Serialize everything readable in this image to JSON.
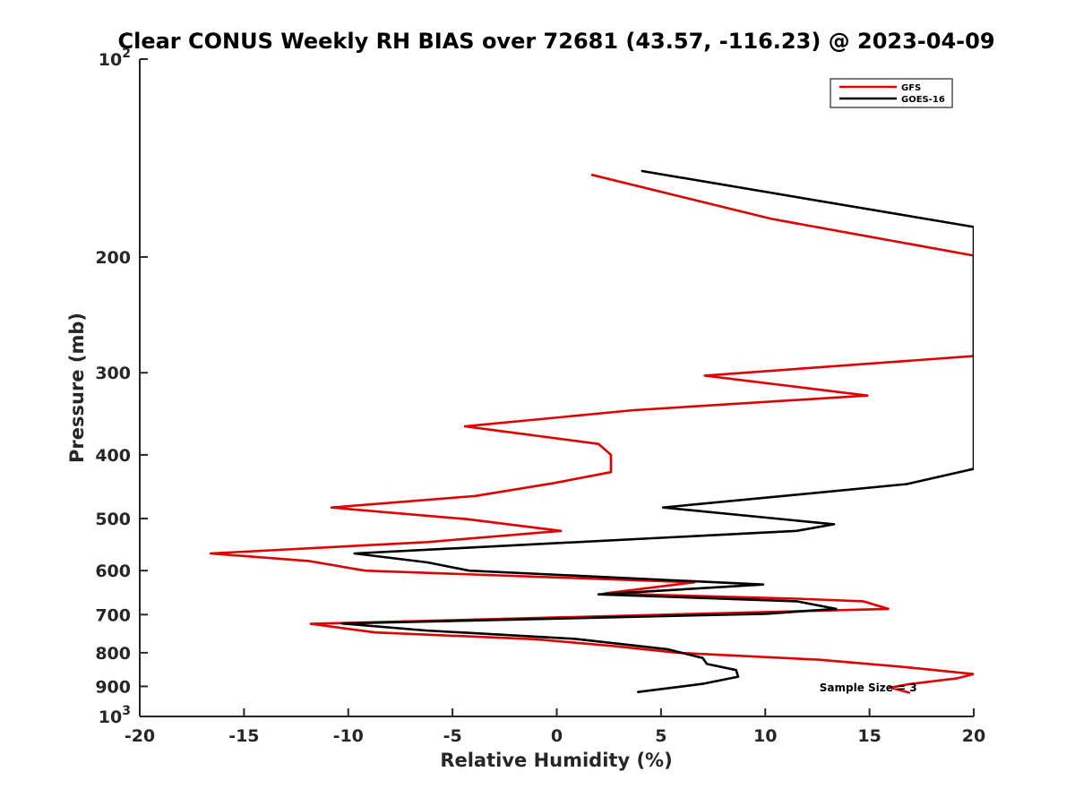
{
  "chart_data": {
    "type": "line",
    "title": "Clear CONUS Weekly RH BIAS over 72681 (43.57, -116.23) @ 2023-04-09",
    "xlabel": "Relative Humidity (%)",
    "ylabel": "Pressure (mb)",
    "xlim": [
      -20,
      20
    ],
    "ylim": [
      100,
      1000
    ],
    "y_scale": "log",
    "y_reversed": true,
    "grid": false,
    "legend_position": "top-right",
    "x_ticks": [
      "-20",
      "-15",
      "-10",
      "-5",
      "0",
      "5",
      "10",
      "15",
      "20"
    ],
    "y_ticks": [
      {
        "value": 100,
        "base": "10",
        "exp": "2"
      },
      {
        "value": 200,
        "label": "200"
      },
      {
        "value": 300,
        "label": "300"
      },
      {
        "value": 400,
        "label": "400"
      },
      {
        "value": 500,
        "label": "500"
      },
      {
        "value": 600,
        "label": "600"
      },
      {
        "value": 700,
        "label": "700"
      },
      {
        "value": 800,
        "label": "800"
      },
      {
        "value": 900,
        "label": "900"
      },
      {
        "value": 1000,
        "base": "10",
        "exp": "3"
      }
    ],
    "series": [
      {
        "name": "GFS",
        "color": "#e00000",
        "points": [
          [
            1.7,
            150
          ],
          [
            10.3,
            175
          ],
          [
            20.0,
            199
          ],
          [
            20.0,
            283
          ],
          [
            7.1,
            303
          ],
          [
            14.9,
            325
          ],
          [
            3.7,
            342
          ],
          [
            -4.4,
            362
          ],
          [
            2.0,
            385
          ],
          [
            2.6,
            400
          ],
          [
            2.6,
            425
          ],
          [
            -0.2,
            442
          ],
          [
            -3.9,
            462
          ],
          [
            -10.8,
            481
          ],
          [
            -4.3,
            501
          ],
          [
            0.2,
            522
          ],
          [
            -6.2,
            543
          ],
          [
            -16.6,
            565
          ],
          [
            -11.9,
            580
          ],
          [
            -9.2,
            600
          ],
          [
            6.6,
            625
          ],
          [
            2.3,
            650
          ],
          [
            11.5,
            662
          ],
          [
            14.7,
            668
          ],
          [
            15.9,
            686
          ],
          [
            -11.8,
            723
          ],
          [
            -8.7,
            745
          ],
          [
            -1.0,
            763
          ],
          [
            2.8,
            782
          ],
          [
            5.8,
            800
          ],
          [
            12.6,
            820
          ],
          [
            16.5,
            840
          ],
          [
            20.0,
            862
          ],
          [
            19.2,
            875
          ],
          [
            16.9,
            893
          ],
          [
            16.0,
            904
          ],
          [
            16.9,
            920
          ]
        ]
      },
      {
        "name": "GOES-16",
        "color": "#000000",
        "points": [
          [
            4.1,
            148
          ],
          [
            20.0,
            180
          ],
          [
            20.0,
            420
          ],
          [
            16.8,
            443
          ],
          [
            5.1,
            481
          ],
          [
            13.3,
            510
          ],
          [
            11.5,
            522
          ],
          [
            -9.7,
            565
          ],
          [
            -6.2,
            583
          ],
          [
            -4.2,
            600
          ],
          [
            9.9,
            630
          ],
          [
            2.0,
            652
          ],
          [
            11.5,
            668
          ],
          [
            13.4,
            686
          ],
          [
            10.0,
            698
          ],
          [
            -10.3,
            722
          ],
          [
            -6.3,
            740
          ],
          [
            0.9,
            762
          ],
          [
            5.3,
            790
          ],
          [
            7.0,
            815
          ],
          [
            7.2,
            832
          ],
          [
            8.6,
            850
          ],
          [
            8.7,
            870
          ],
          [
            7.0,
            892
          ],
          [
            3.9,
            918
          ]
        ]
      }
    ],
    "annotations": [
      {
        "text": "Sample Size = 3",
        "x": 12.6,
        "y": 904
      }
    ]
  }
}
